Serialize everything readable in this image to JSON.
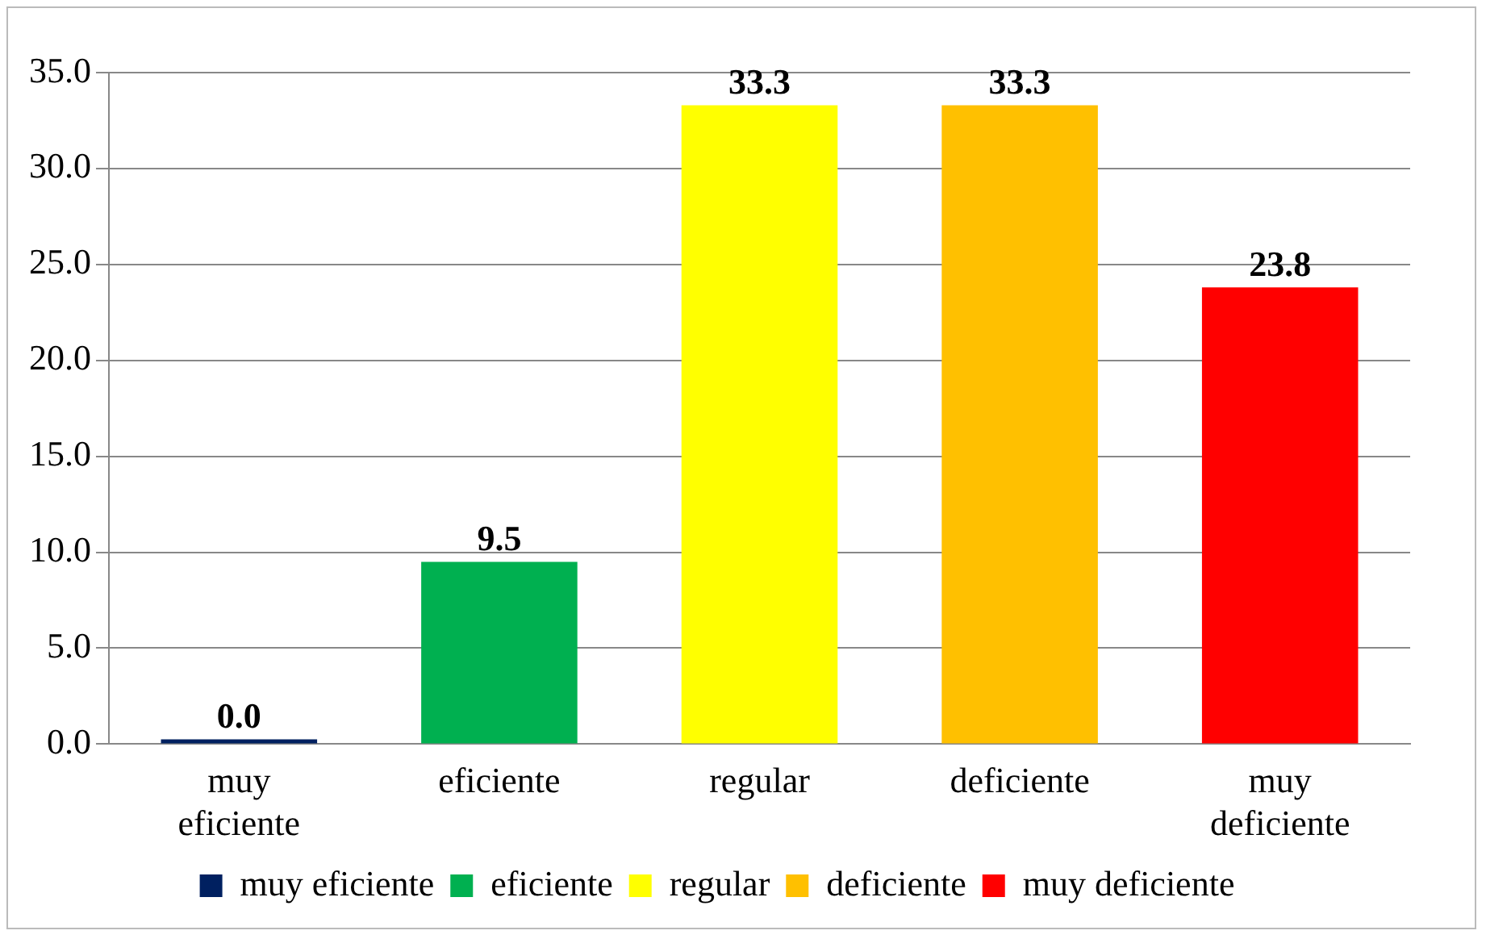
{
  "chart_data": {
    "type": "bar",
    "categories": [
      "muy eficiente",
      "eficiente",
      "regular",
      "deficiente",
      "muy deficiente"
    ],
    "series": [
      {
        "name": "muy eficiente",
        "color": "#002060",
        "values": [
          0.0,
          null,
          null,
          null,
          null
        ],
        "value_labels": [
          "0.0",
          null,
          null,
          null,
          null
        ]
      },
      {
        "name": "eficiente",
        "color": "#00b050",
        "values": [
          null,
          9.5,
          null,
          null,
          null
        ],
        "value_labels": [
          null,
          "9.5",
          null,
          null,
          null
        ]
      },
      {
        "name": "regular",
        "color": "#ffff00",
        "values": [
          null,
          null,
          33.3,
          null,
          null
        ],
        "value_labels": [
          null,
          null,
          "33.3",
          null,
          null
        ]
      },
      {
        "name": "deficiente",
        "color": "#ffc000",
        "values": [
          null,
          null,
          null,
          33.3,
          null
        ],
        "value_labels": [
          null,
          null,
          null,
          "33.3",
          null
        ]
      },
      {
        "name": "muy deficiente",
        "color": "#ff0000",
        "values": [
          null,
          null,
          null,
          null,
          23.8
        ],
        "value_labels": [
          null,
          null,
          null,
          null,
          "23.8"
        ]
      }
    ],
    "ylim": [
      0,
      35
    ],
    "yticks": [
      {
        "value": 0,
        "label": "0.0"
      },
      {
        "value": 5,
        "label": "5.0"
      },
      {
        "value": 10,
        "label": "10.0"
      },
      {
        "value": 15,
        "label": "15.0"
      },
      {
        "value": 20,
        "label": "20.0"
      },
      {
        "value": 25,
        "label": "25.0"
      },
      {
        "value": 30,
        "label": "30.0"
      },
      {
        "value": 35,
        "label": "35.0"
      }
    ],
    "grid": "y",
    "legend": "bottom"
  }
}
